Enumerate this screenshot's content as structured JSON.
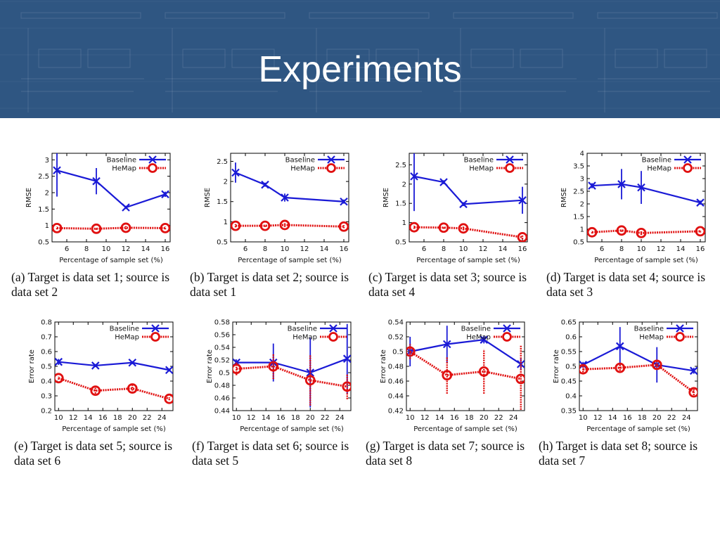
{
  "slide": {
    "title": "Experiments"
  },
  "colors": {
    "baseline": "#1a1ad6",
    "hemap": "#e01010",
    "header": "#2f5682"
  },
  "chart_data": [
    {
      "type": "line",
      "xlabel": "Percentage of sample set (%)",
      "ylabel": "RMSE",
      "caption": [
        "(a) Target is data set 1; source is",
        "data set 2"
      ],
      "xlim": [
        4.5,
        16.5
      ],
      "ylim": [
        0.5,
        3.2
      ],
      "xticks": [
        6,
        8,
        10,
        12,
        14,
        16
      ],
      "xticklabels": [
        "6",
        "8",
        "10",
        "12",
        "14",
        "16"
      ],
      "yticks": [
        0.5,
        1,
        1.5,
        2,
        2.5,
        3
      ],
      "yticklabels": [
        "0.5",
        "1",
        "1.5",
        "2",
        "2.5",
        "3"
      ],
      "legend_position": "top-right",
      "series": [
        {
          "name": "Baseline",
          "x": [
            5,
            9,
            12,
            16
          ],
          "y": [
            2.68,
            2.35,
            1.55,
            1.95
          ],
          "err": [
            0.8,
            0.4,
            0.05,
            0.08
          ]
        },
        {
          "name": "HeMap",
          "x": [
            5,
            9,
            12,
            16
          ],
          "y": [
            0.92,
            0.9,
            0.93,
            0.92
          ],
          "err": [
            0.04,
            0.03,
            0.05,
            0.04
          ]
        }
      ]
    },
    {
      "type": "line",
      "xlabel": "Percentage of sample set (%)",
      "ylabel": "RMSE",
      "caption": [
        "(b) Target is data set 2; source is",
        "data set 1"
      ],
      "xlim": [
        4.5,
        16.5
      ],
      "ylim": [
        0.5,
        2.7
      ],
      "xticks": [
        6,
        8,
        10,
        12,
        14,
        16
      ],
      "xticklabels": [
        "6",
        "8",
        "10",
        "12",
        "14",
        "16"
      ],
      "yticks": [
        0.5,
        1,
        1.5,
        2,
        2.5
      ],
      "yticklabels": [
        "0.5",
        "1",
        "1.5",
        "2",
        "2.5"
      ],
      "legend_position": "top-right",
      "series": [
        {
          "name": "Baseline",
          "x": [
            5,
            8,
            10,
            16
          ],
          "y": [
            2.22,
            1.92,
            1.6,
            1.5
          ],
          "err": [
            0.25,
            0.05,
            0.1,
            0.05
          ]
        },
        {
          "name": "HeMap",
          "x": [
            5,
            8,
            10,
            16
          ],
          "y": [
            0.9,
            0.9,
            0.92,
            0.88
          ],
          "err": [
            0.04,
            0.03,
            0.05,
            0.04
          ]
        }
      ]
    },
    {
      "type": "line",
      "xlabel": "Percentage of sample set (%)",
      "ylabel": "RMSE",
      "caption": [
        "(c) Target is data set 3; source is",
        "data set 4"
      ],
      "xlim": [
        4.5,
        16.5
      ],
      "ylim": [
        0.5,
        2.8
      ],
      "xticks": [
        6,
        8,
        10,
        12,
        14,
        16
      ],
      "xticklabels": [
        "6",
        "8",
        "10",
        "12",
        "14",
        "16"
      ],
      "yticks": [
        0.5,
        1,
        1.5,
        2,
        2.5
      ],
      "yticklabels": [
        "0.5",
        "1",
        "1.5",
        "2",
        "2.5"
      ],
      "legend_position": "top-right",
      "series": [
        {
          "name": "Baseline",
          "x": [
            5,
            8,
            10,
            16
          ],
          "y": [
            2.2,
            2.05,
            1.48,
            1.58
          ],
          "err": [
            0.9,
            0.05,
            0.05,
            0.35
          ]
        },
        {
          "name": "HeMap",
          "x": [
            5,
            8,
            10,
            16
          ],
          "y": [
            0.88,
            0.87,
            0.85,
            0.62
          ],
          "err": [
            0.04,
            0.03,
            0.05,
            0.05
          ]
        }
      ]
    },
    {
      "type": "line",
      "xlabel": "Percentage of sample set (%)",
      "ylabel": "RMSE",
      "caption": [
        "(d) Target is data set 4; source is",
        "data set 3"
      ],
      "xlim": [
        4.5,
        16.5
      ],
      "ylim": [
        0.5,
        4
      ],
      "xticks": [
        6,
        8,
        10,
        12,
        14,
        16
      ],
      "xticklabels": [
        "6",
        "8",
        "10",
        "12",
        "14",
        "16"
      ],
      "yticks": [
        0.5,
        1,
        1.5,
        2,
        2.5,
        3,
        3.5,
        4
      ],
      "yticklabels": [
        "0.5",
        "1",
        "1.5",
        "2",
        "2.5",
        "3",
        "3.5",
        "4"
      ],
      "legend_position": "top-right",
      "series": [
        {
          "name": "Baseline",
          "x": [
            5,
            8,
            10,
            16
          ],
          "y": [
            2.72,
            2.78,
            2.65,
            2.05
          ],
          "err": [
            0.1,
            0.6,
            0.65,
            0.08
          ]
        },
        {
          "name": "HeMap",
          "x": [
            5,
            8,
            10,
            16
          ],
          "y": [
            0.88,
            0.95,
            0.85,
            0.92
          ],
          "err": [
            0.05,
            0.05,
            0.08,
            0.05
          ]
        }
      ]
    },
    {
      "type": "line",
      "xlabel": "Percentage of sample set (%)",
      "ylabel": "Error rate",
      "caption": [
        "(e) Target is data set 5; source is",
        "data set 6"
      ],
      "xlim": [
        9.5,
        25.5
      ],
      "ylim": [
        0.2,
        0.8
      ],
      "xticks": [
        10,
        12,
        14,
        16,
        18,
        20,
        22,
        24
      ],
      "xticklabels": [
        "10",
        "12",
        "14",
        "16",
        "18",
        "20",
        "22",
        "24"
      ],
      "yticks": [
        0.2,
        0.3,
        0.4,
        0.5,
        0.6,
        0.7,
        0.8
      ],
      "yticklabels": [
        "0.2",
        "0.3",
        "0.4",
        "0.5",
        "0.6",
        "0.7",
        "0.8"
      ],
      "legend_position": "top-right",
      "series": [
        {
          "name": "Baseline",
          "x": [
            10,
            15,
            20,
            25
          ],
          "y": [
            0.53,
            0.505,
            0.525,
            0.475
          ],
          "err": [
            0.02,
            0.01,
            0.01,
            0.01
          ]
        },
        {
          "name": "HeMap",
          "x": [
            10,
            15,
            20,
            25
          ],
          "y": [
            0.42,
            0.335,
            0.35,
            0.28
          ],
          "err": [
            0.01,
            0.02,
            0.03,
            0.01
          ]
        }
      ]
    },
    {
      "type": "line",
      "xlabel": "Percentage of sample set (%)",
      "ylabel": "Error rate",
      "caption": [
        "(f) Target is data set 6; source is",
        "data set 5"
      ],
      "xlim": [
        9.5,
        25.5
      ],
      "ylim": [
        0.44,
        0.58
      ],
      "xticks": [
        10,
        12,
        14,
        16,
        18,
        20,
        22,
        24
      ],
      "xticklabels": [
        "10",
        "12",
        "14",
        "16",
        "18",
        "20",
        "22",
        "24"
      ],
      "yticks": [
        0.44,
        0.46,
        0.48,
        0.5,
        0.52,
        0.54,
        0.56,
        0.58
      ],
      "yticklabels": [
        "0.44",
        "0.46",
        "0.48",
        "0.5",
        "0.52",
        "0.54",
        "0.56",
        "0.58"
      ],
      "legend_position": "top-right",
      "series": [
        {
          "name": "Baseline",
          "x": [
            10,
            15,
            20,
            25
          ],
          "y": [
            0.516,
            0.516,
            0.5,
            0.522
          ],
          "err": [
            0.005,
            0.03,
            0.055,
            0.055
          ]
        },
        {
          "name": "HeMap",
          "x": [
            10,
            15,
            20,
            25
          ],
          "y": [
            0.506,
            0.51,
            0.488,
            0.478
          ],
          "err": [
            0.01,
            0.02,
            0.04,
            0.02
          ]
        }
      ]
    },
    {
      "type": "line",
      "xlabel": "Percentage of sample set (%)",
      "ylabel": "Error rate",
      "caption": [
        "(g) Target is data set 7; source is",
        "data set 8"
      ],
      "xlim": [
        9.5,
        25.5
      ],
      "ylim": [
        0.42,
        0.54
      ],
      "xticks": [
        10,
        12,
        14,
        16,
        18,
        20,
        22,
        24
      ],
      "xticklabels": [
        "10",
        "12",
        "14",
        "16",
        "18",
        "20",
        "22",
        "24"
      ],
      "yticks": [
        0.42,
        0.44,
        0.46,
        0.48,
        0.5,
        0.52,
        0.54
      ],
      "yticklabels": [
        "0.42",
        "0.44",
        "0.46",
        "0.48",
        "0.5",
        "0.52",
        "0.54"
      ],
      "legend_position": "top-right",
      "series": [
        {
          "name": "Baseline",
          "x": [
            10,
            15,
            20,
            25
          ],
          "y": [
            0.5,
            0.51,
            0.516,
            0.483
          ],
          "err": [
            0.02,
            0.025,
            0.005,
            0.008
          ]
        },
        {
          "name": "HeMap",
          "x": [
            10,
            15,
            20,
            25
          ],
          "y": [
            0.5,
            0.468,
            0.473,
            0.463
          ],
          "err": [
            0.01,
            0.025,
            0.03,
            0.045
          ]
        }
      ]
    },
    {
      "type": "line",
      "xlabel": "Percentage of sample set (%)",
      "ylabel": "Error rate",
      "caption": [
        "(h) Target is data set 8; source is",
        "data set 7"
      ],
      "xlim": [
        9.5,
        25.5
      ],
      "ylim": [
        0.35,
        0.65
      ],
      "xticks": [
        10,
        12,
        14,
        16,
        18,
        20,
        22,
        24
      ],
      "xticklabels": [
        "10",
        "12",
        "14",
        "16",
        "18",
        "20",
        "22",
        "24"
      ],
      "yticks": [
        0.35,
        0.4,
        0.45,
        0.5,
        0.55,
        0.6,
        0.65
      ],
      "yticklabels": [
        "0.35",
        "0.4",
        "0.45",
        "0.5",
        "0.55",
        "0.6",
        "0.65"
      ],
      "legend_position": "top-right",
      "series": [
        {
          "name": "Baseline",
          "x": [
            10,
            15,
            20,
            25
          ],
          "y": [
            0.505,
            0.568,
            0.505,
            0.485
          ],
          "err": [
            0.01,
            0.065,
            0.06,
            0.01
          ]
        },
        {
          "name": "HeMap",
          "x": [
            10,
            15,
            20,
            25
          ],
          "y": [
            0.49,
            0.495,
            0.505,
            0.412
          ],
          "err": [
            0.01,
            0.01,
            0.015,
            0.01
          ]
        }
      ]
    }
  ]
}
